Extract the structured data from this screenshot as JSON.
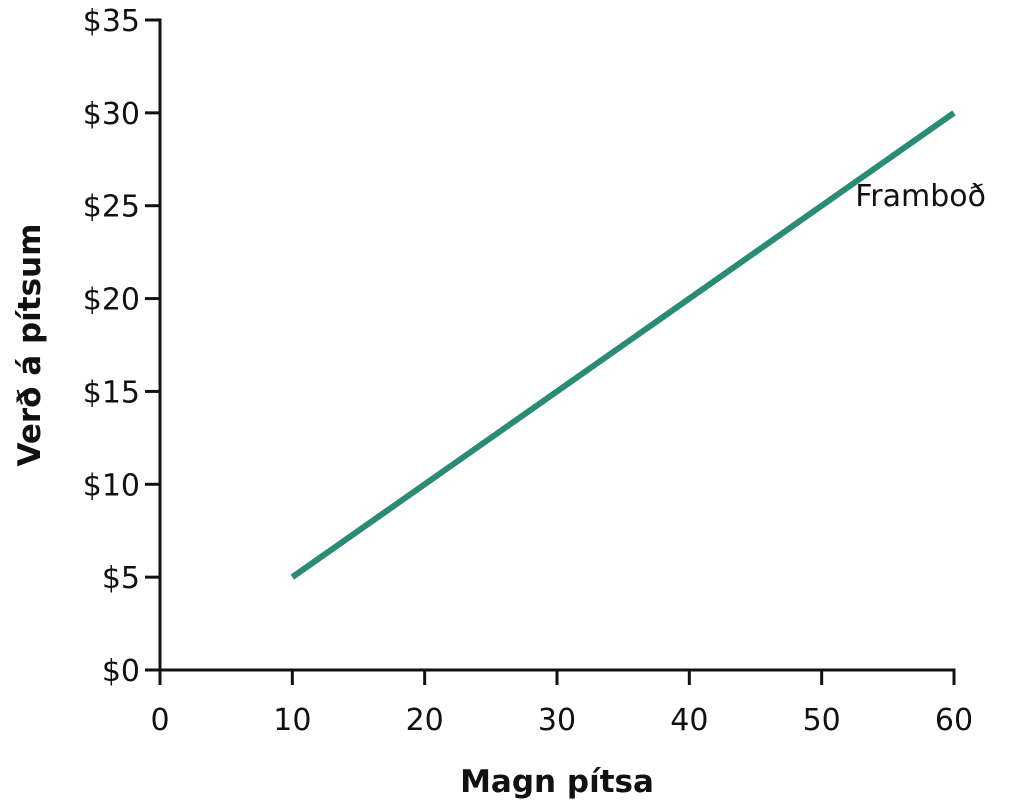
{
  "chart_data": {
    "type": "line",
    "title": "",
    "xlabel": "Magn pítsa",
    "ylabel": "Verð á pítsum",
    "xlim": [
      0,
      60
    ],
    "ylim": [
      0,
      35
    ],
    "x_ticks": [
      0,
      10,
      20,
      30,
      40,
      50,
      60
    ],
    "y_ticks": [
      0,
      5,
      10,
      15,
      20,
      25,
      30,
      35
    ],
    "x_tick_labels": [
      "0",
      "10",
      "20",
      "30",
      "40",
      "50",
      "60"
    ],
    "y_tick_labels": [
      "$0",
      "$5",
      "$10",
      "$15",
      "$20",
      "$25",
      "$30",
      "$35"
    ],
    "grid": false,
    "legend": "none",
    "series": [
      {
        "name": "Framboð",
        "color": "#2a8c74",
        "points": [
          {
            "x": 10,
            "y": 5
          },
          {
            "x": 60,
            "y": 30
          }
        ]
      }
    ]
  }
}
